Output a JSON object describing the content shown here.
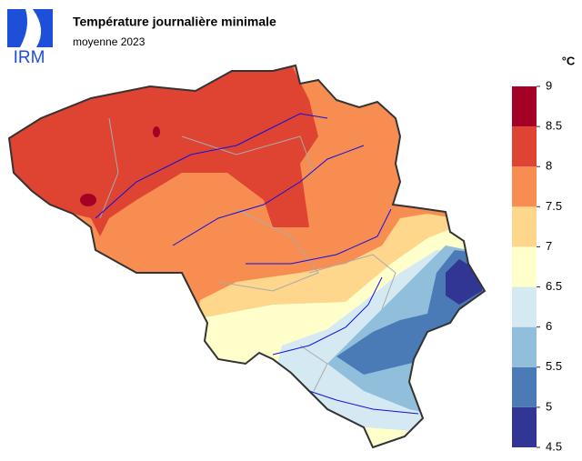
{
  "logo": "IRM",
  "header": {
    "title": "Température journalière minimale",
    "subtitle": "moyenne 2023"
  },
  "legend": {
    "unit": "°C",
    "ticks": [
      4.5,
      5,
      5.5,
      6,
      6.5,
      7,
      7.5,
      8,
      8.5,
      9
    ],
    "colors": [
      "#313695",
      "#4a7bb7",
      "#91bfdb",
      "#d5e9f3",
      "#ffffcc",
      "#fed68c",
      "#f88d52",
      "#de4431",
      "#a50026"
    ]
  }
}
